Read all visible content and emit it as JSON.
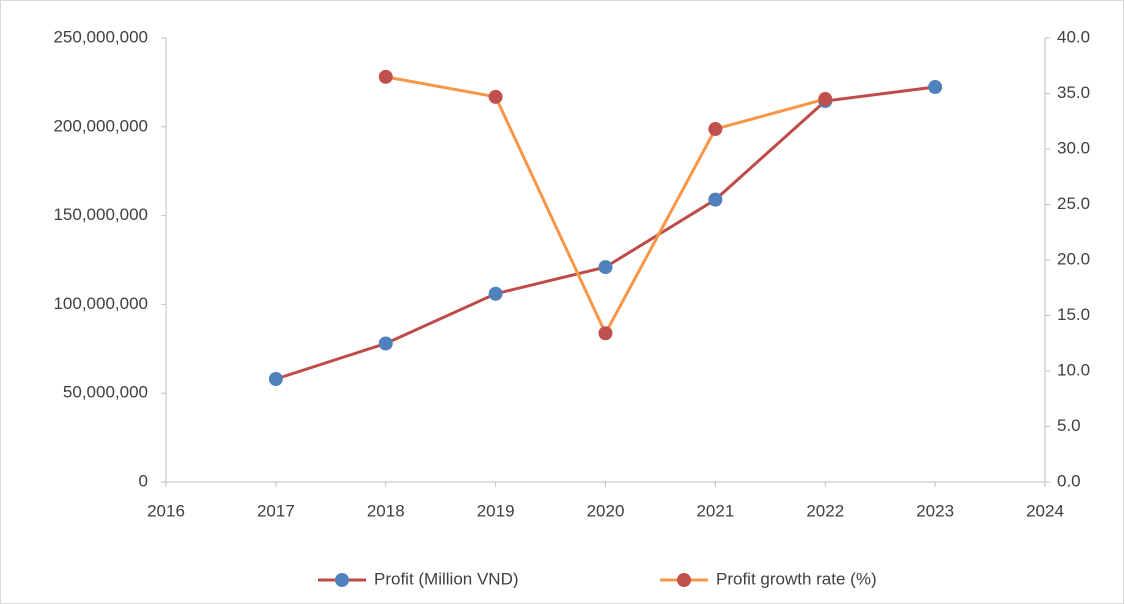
{
  "chart_data": {
    "type": "line",
    "x": [
      2017,
      2018,
      2019,
      2020,
      2021,
      2022,
      2023
    ],
    "xlim": [
      2016,
      2024
    ],
    "xticks": [
      2016,
      2017,
      2018,
      2019,
      2020,
      2021,
      2022,
      2023,
      2024
    ],
    "ylim": [
      0,
      250000000
    ],
    "yticks": [
      0,
      {
        "value": 50000000,
        "label": "50,000,000"
      },
      {
        "value": 100000000,
        "label": "100,000,000"
      },
      {
        "value": 150000000,
        "label": "150,000,000"
      },
      {
        "value": 200000000,
        "label": "200,000,000"
      },
      {
        "value": 250000000,
        "label": "250,000,000"
      }
    ],
    "y2lim": [
      0,
      40
    ],
    "y2ticks": [
      {
        "value": 0,
        "label": "0.0"
      },
      {
        "value": 5,
        "label": "5.0"
      },
      {
        "value": 10,
        "label": "10.0"
      },
      {
        "value": 15,
        "label": "15.0"
      },
      {
        "value": 20,
        "label": "20.0"
      },
      {
        "value": 25,
        "label": "25.0"
      },
      {
        "value": 30,
        "label": "30.0"
      },
      {
        "value": 35,
        "label": "35.0"
      },
      {
        "value": 40,
        "label": "40.0"
      }
    ],
    "grid": false,
    "legend": "bottom",
    "series": [
      {
        "name": "Profit (Million VND)",
        "color": "#be4b48",
        "marker_color": "#4f81bd",
        "values": [
          58000000,
          78000000,
          106000000,
          121000000,
          159000000,
          214500000,
          222400000
        ]
      },
      {
        "name": "Profit growth rate (%)",
        "color": "#f79646",
        "marker_color": "#c0504d",
        "axis": "y2",
        "values": [
          null,
          36.5,
          34.7,
          13.4,
          31.8,
          34.5,
          null
        ]
      }
    ]
  }
}
